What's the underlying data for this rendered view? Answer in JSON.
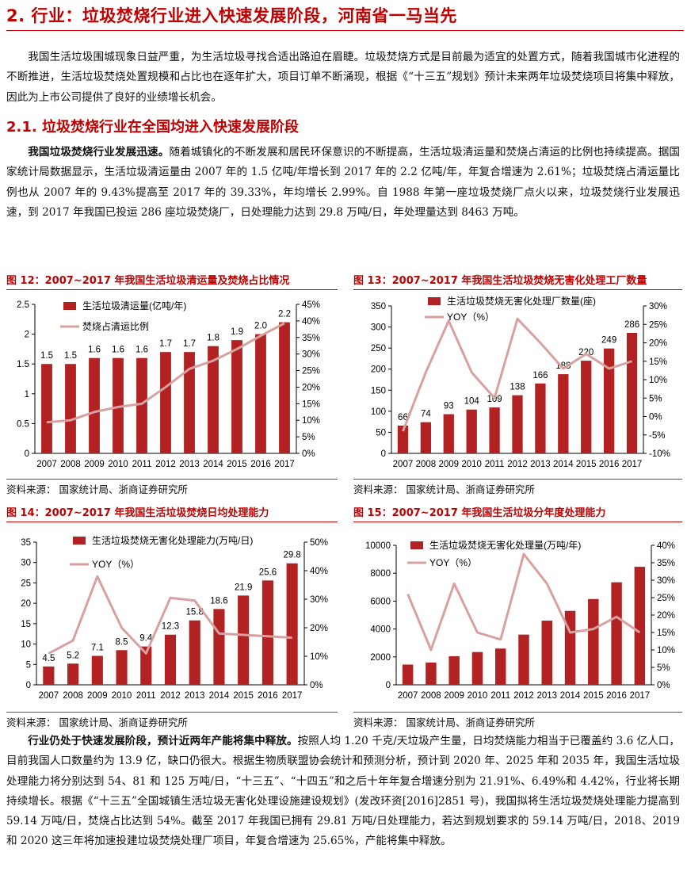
{
  "heading": "2. 行业：垃圾焚烧行业进入快速发展阶段，河南省一马当先",
  "intro": "我国生活垃圾围城现象日益严重，为生活垃圾寻找合适出路迫在眉睫。垃圾焚烧方式是目前最为适宜的处置方式，随着我国城市化进程的不断推进，生活垃圾焚烧处置规模和占比也在逐年扩大，项目订单不断涌现，根据《“十三五”规划》预计未来两年垃圾焚烧项目将集中释放，因此为上市公司提供了良好的业绩增长机会。",
  "section_heading": "2.1. 垃圾焚烧行业在全国均进入快速发展阶段",
  "para1_lead": "我国垃圾焚烧行业发展迅速。",
  "para1": "随着城镇化的不断发展和居民环保意识的不断提高，生活垃圾清运量和焚烧占清运的比例也持续提高。据国家统计局数据显示，生活垃圾清运量由 2007 年的 1.5 亿吨/年增长到 2017 年的 2.2 亿吨/年，年复合增速为 2.61%；垃圾焚烧占清运量比例也从 2007 年的 9.43%提高至 2017 年的 39.33%，年均增长 2.99%。自 1988 年第一座垃圾焚烧厂点火以来，垃圾焚烧行业发展迅速，到 2017 年我国已投运 286 座垃圾焚烧厂，日处理能力达到 29.8 万吨/日，年处理量达到 8463 万吨。",
  "para2_lead": "行业仍处于快速发展阶段，预计近两年产能将集中释放。",
  "para2": "按照人均 1.20 千克/天垃圾产生量，日均焚烧能力相当于已覆盖约 3.6 亿人口，目前我国人口数量约为 13.9 亿，缺口仍很大。根据生物质联盟协会统计和预测分析，预计到 2020 年、2025 年和 2035 年，我国生活垃圾处理能力将分别达到 54、81 和 125 万吨/日，“十三五”、“十四五”和之后十年年复合增速分别为 21.91%、6.49%和 4.42%，行业将长期持续增长。根据《“十三五”全国城镇生活垃圾无害化处理设施建设规划》(发改环资[2016]2851 号)，我国拟将生活垃圾焚烧处理能力提高到 59.14 万吨/日，焚烧占比达到 54%。截至 2017 年我国已拥有 29.81 万吨/日处理能力，若达到规划要求的 59.14 万吨/日，2018、2019 和 2020 这三年将加速投建垃圾焚烧处理厂项目，年复合增速为 25.65%，产能将集中释放。",
  "colors": {
    "bar": "#b22222",
    "line": "#d9a0a0",
    "accent": "#c00000"
  },
  "chart_data": [
    {
      "title": "图 12：2007~2017 年我国生活垃圾清运量及焚烧占比情况",
      "source": "资料来源：  国家统计局、浙商证券研究所",
      "type": "bar+line",
      "categories": [
        "2007",
        "2008",
        "2009",
        "2010",
        "2011",
        "2012",
        "2013",
        "2014",
        "2015",
        "2016",
        "2017"
      ],
      "series": [
        {
          "name": "生活垃圾清运量(亿吨/年)",
          "type": "bar",
          "values": [
            1.5,
            1.5,
            1.6,
            1.6,
            1.6,
            1.7,
            1.7,
            1.8,
            1.9,
            2.0,
            2.2
          ],
          "labels": [
            "1.5",
            "1.5",
            "1.6",
            "1.6",
            "1.6",
            "1.7",
            "1.7",
            "1.8",
            "1.9",
            "2.0",
            "2.2"
          ]
        },
        {
          "name": "焚烧占清运比例",
          "type": "line",
          "axis": "right",
          "values": [
            9.4,
            10,
            12.5,
            14,
            15,
            20,
            25.5,
            28,
            31.5,
            35.5,
            39.3
          ]
        }
      ],
      "ylim": [
        0,
        2.5
      ],
      "yticks": [
        "0",
        "0.5",
        "1",
        "1.5",
        "2",
        "2.5"
      ],
      "y2lim": [
        0,
        45
      ],
      "y2ticks": [
        "0%",
        "5%",
        "10%",
        "15%",
        "20%",
        "25%",
        "30%",
        "35%",
        "40%",
        "45%"
      ]
    },
    {
      "title": "图 13：2007~2017 年我国生活垃圾焚烧无害化处理工厂数量",
      "source": "资料来源：  国家统计局、浙商证券研究所",
      "type": "bar+line",
      "categories": [
        "2007",
        "2008",
        "2009",
        "2010",
        "2011",
        "2012",
        "2013",
        "2014",
        "2015",
        "2016",
        "2017"
      ],
      "series": [
        {
          "name": "生活垃圾焚烧无害化处理厂数量(座)",
          "type": "bar",
          "values": [
            66,
            74,
            93,
            104,
            109,
            138,
            166,
            188,
            220,
            249,
            286
          ],
          "labels": [
            "66",
            "74",
            "93",
            "104",
            "109",
            "138",
            "166",
            "188",
            "220",
            "249",
            "286"
          ]
        },
        {
          "name": "YOY（%）",
          "type": "line",
          "axis": "right",
          "values": [
            -4,
            12,
            26,
            12,
            5,
            26.5,
            20,
            13,
            17,
            13,
            15
          ]
        }
      ],
      "ylim": [
        0,
        350
      ],
      "yticks": [
        "0",
        "50",
        "100",
        "150",
        "200",
        "250",
        "300",
        "350"
      ],
      "y2lim": [
        -10,
        30
      ],
      "y2ticks": [
        "-10%",
        "-5%",
        "0%",
        "5%",
        "10%",
        "15%",
        "20%",
        "25%",
        "30%"
      ]
    },
    {
      "title": "图 14：2007~2017 年我国生活垃圾焚烧日均处理能力",
      "source": "资料来源：  国家统计局、浙商证券研究所",
      "type": "bar+line",
      "categories": [
        "2007",
        "2008",
        "2009",
        "2010",
        "2011",
        "2012",
        "2013",
        "2014",
        "2015",
        "2016",
        "2017"
      ],
      "series": [
        {
          "name": "生活垃圾焚烧无害化处理能力(万吨/日)",
          "type": "bar",
          "values": [
            4.5,
            5.2,
            7.1,
            8.5,
            9.4,
            12.3,
            15.8,
            18.6,
            21.9,
            25.6,
            29.8
          ],
          "labels": [
            "4.5",
            "5.2",
            "7.1",
            "8.5",
            "9.4",
            "12.3",
            "15.8",
            "18.6",
            "21.9",
            "25.6",
            "29.8"
          ]
        },
        {
          "name": "YOY（%）",
          "type": "line",
          "axis": "right",
          "values": [
            11,
            15.5,
            38,
            20,
            11,
            30.5,
            29.5,
            18,
            17.5,
            17,
            16.5
          ]
        }
      ],
      "ylim": [
        0,
        35
      ],
      "yticks": [
        "0",
        "5",
        "10",
        "15",
        "20",
        "25",
        "30",
        "35"
      ],
      "y2lim": [
        0,
        50
      ],
      "y2ticks": [
        "0%",
        "10%",
        "20%",
        "30%",
        "40%",
        "50%"
      ]
    },
    {
      "title": "图 15：2007~2017 年我国生活垃圾分年度处理能力",
      "source": "资料来源：  国家统计局、浙商证券研究所",
      "type": "bar+line",
      "categories": [
        "2007",
        "2008",
        "2009",
        "2010",
        "2011",
        "2012",
        "2013",
        "2014",
        "2015",
        "2016",
        "2017"
      ],
      "series": [
        {
          "name": "生活垃圾焚烧无害化处理量(万吨/年)",
          "type": "bar",
          "values": [
            1450,
            1600,
            2050,
            2350,
            2600,
            3600,
            4600,
            5300,
            6150,
            7350,
            8460
          ],
          "labels": []
        },
        {
          "name": "YOY（%）",
          "type": "line",
          "axis": "right",
          "values": [
            26,
            10,
            29,
            15,
            13,
            37.5,
            29,
            15,
            16,
            19.5,
            15
          ]
        }
      ],
      "ylim": [
        0,
        10000
      ],
      "yticks": [
        "0",
        "2000",
        "4000",
        "6000",
        "8000",
        "10000"
      ],
      "y2lim": [
        0,
        40
      ],
      "y2ticks": [
        "0%",
        "5%",
        "10%",
        "15%",
        "20%",
        "25%",
        "30%",
        "35%",
        "40%"
      ]
    }
  ]
}
